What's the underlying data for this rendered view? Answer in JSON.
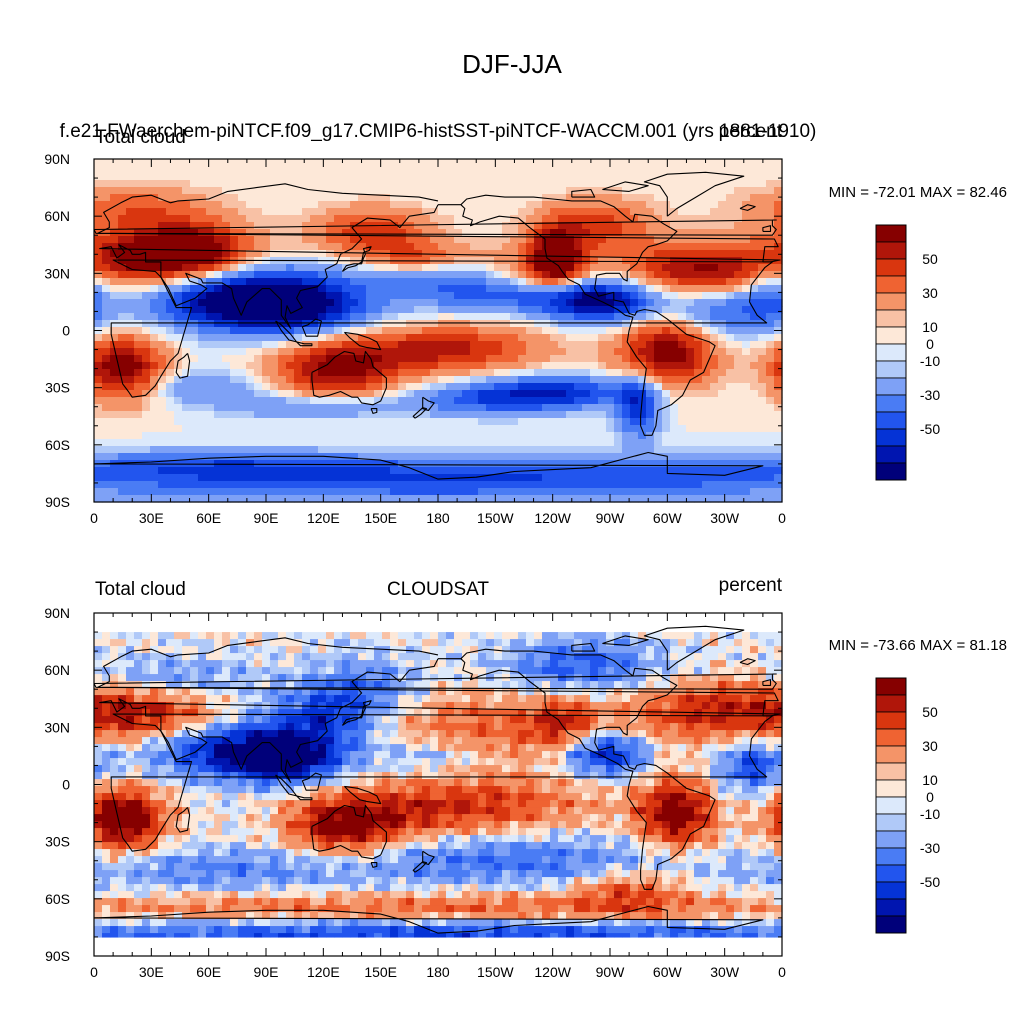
{
  "figure": {
    "title": "DJF-JJA"
  },
  "panels": [
    {
      "id": "top",
      "left_title": "Total cloud",
      "center_title": "f.e21.FWaerchem-piNTCF.f09_g17.CMIP6-histSST-piNTCF-WACCM.001 (yrs 1881-1910)",
      "right_title": "percent",
      "stats": "MIN = -72.01 MAX =  82.46",
      "data_lat_range": [
        -90,
        90
      ]
    },
    {
      "id": "bottom",
      "left_title": "Total cloud",
      "center_title": "CLOUDSAT",
      "right_title": "percent",
      "stats": "MIN = -73.66 MAX =  81.18",
      "data_lat_range": [
        -80,
        80
      ]
    }
  ],
  "axes": {
    "lon_ticks": [
      "0",
      "30E",
      "60E",
      "90E",
      "120E",
      "150E",
      "180",
      "150W",
      "120W",
      "90W",
      "60W",
      "30W",
      "0"
    ],
    "lat_ticks": [
      "90N",
      "60N",
      "30N",
      "0",
      "30S",
      "60S",
      "90S"
    ],
    "lon_range": [
      0,
      360
    ],
    "lat_range": [
      -90,
      90
    ]
  },
  "colorbar": {
    "labels": [
      "50",
      "30",
      "10",
      "0",
      "-10",
      "-30",
      "-50"
    ],
    "levels": [
      -60,
      -50,
      -40,
      -30,
      -20,
      -10,
      -5,
      0,
      5,
      10,
      20,
      30,
      40,
      50,
      60
    ],
    "colors": [
      "#00007a",
      "#0015b0",
      "#0533d6",
      "#2255ee",
      "#4a7cf4",
      "#7ea1f6",
      "#b0c9f8",
      "#dce9fb",
      "#fde8d8",
      "#f8c1a5",
      "#f49468",
      "#ef6332",
      "#d9360f",
      "#b0160a",
      "#860000"
    ]
  }
}
